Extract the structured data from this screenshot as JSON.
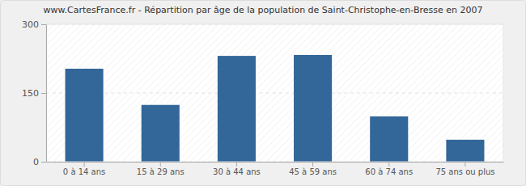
{
  "chart_data": {
    "type": "bar",
    "title": "www.CartesFrance.fr - Répartition par âge de la population de Saint-Christophe-en-Bresse en 2007",
    "categories": [
      "0 à 14 ans",
      "15 à 29 ans",
      "30 à 44 ans",
      "45 à 59 ans",
      "60 à 74 ans",
      "75 ans ou plus"
    ],
    "values": [
      203,
      124,
      231,
      233,
      99,
      48
    ],
    "color": "#336699",
    "ylim": [
      0,
      300
    ],
    "yticks": [
      0,
      150,
      300
    ],
    "grid": true
  }
}
